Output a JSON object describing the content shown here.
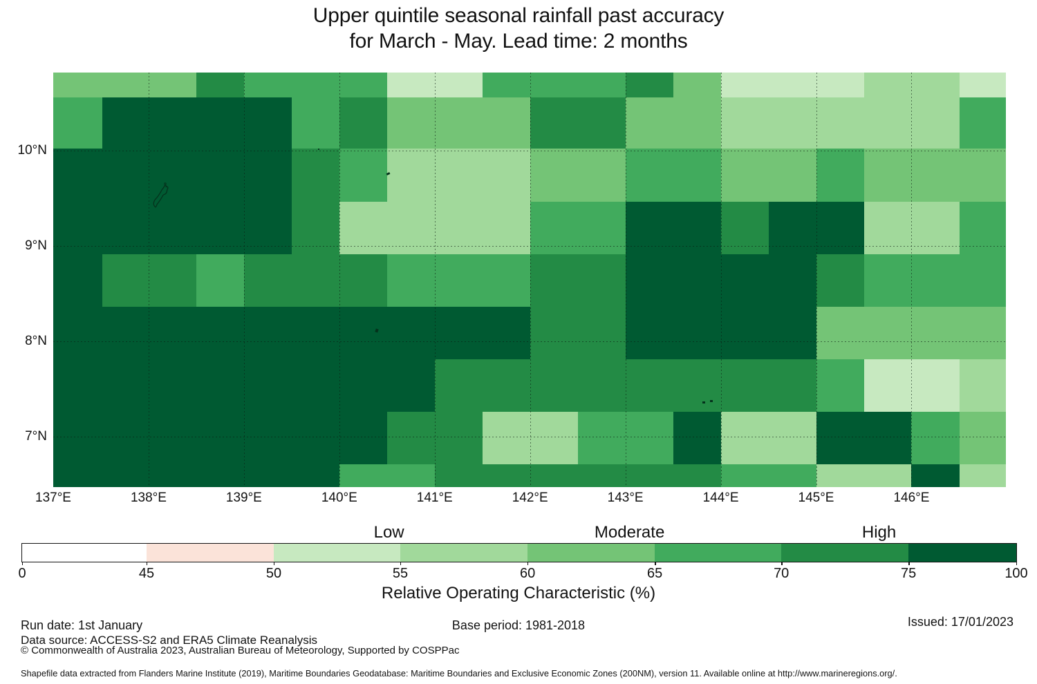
{
  "title": {
    "line1": "Upper quintile seasonal rainfall past accuracy",
    "line2": "for March - May. Lead time: 2 months"
  },
  "chart_data": {
    "type": "heatmap",
    "title": "Upper quintile seasonal rainfall past accuracy for March - May. Lead time: 2 months",
    "x_axis": {
      "ticks": [
        "137°E",
        "138°E",
        "139°E",
        "140°E",
        "141°E",
        "142°E",
        "143°E",
        "144°E",
        "145°E",
        "146°E"
      ],
      "tick_lons": [
        137,
        138,
        139,
        140,
        141,
        142,
        143,
        144,
        145,
        146
      ]
    },
    "y_axis": {
      "ticks": [
        "10°N",
        "9°N",
        "8°N",
        "7°N"
      ],
      "tick_lats": [
        10,
        9,
        8,
        7
      ]
    },
    "lon_range": [
      137.0,
      146.99
    ],
    "lat_range": [
      6.469,
      10.819
    ],
    "grid": "on (dashed, at whole degrees)",
    "col_bounds_lon": [
      137.0,
      137.515,
      138.0,
      138.501,
      139.0,
      139.501,
      140.0,
      140.502,
      141.0,
      141.503,
      142.0,
      142.503,
      143.0,
      143.503,
      144.0,
      144.504,
      145.0,
      145.504,
      146.0,
      146.504,
      146.99
    ],
    "row_bounds_lat": [
      10.819,
      10.558,
      10.021,
      9.463,
      8.912,
      8.361,
      7.81,
      7.259,
      6.708,
      6.469
    ],
    "grid_rows": [
      "33354441144453111221",
      "46666453335533222224",
      "66666542223344334333",
      "66666522224466566224",
      "65545554445566665444",
      "66666666665566663333",
      "66666666555555554112",
      "66666665522446226643",
      "66666644555555442262"
    ],
    "palette": {
      "w": "#ffffff",
      "p": "#fbe3d9",
      "1": "#c7e9c0",
      "2": "#a1d99b",
      "3": "#74c476",
      "4": "#41ab5d",
      "5": "#238b45",
      "6": "#005a32"
    },
    "class_roc_ranges_pct": {
      "w": "0-45",
      "p": "45-50",
      "1": "50-55",
      "2": "55-60",
      "3": "60-65",
      "4": "65-70",
      "5": "70-75",
      "6": "75-100"
    }
  },
  "colorbar": {
    "axis_title": "Relative Operating Characteristic (%)",
    "segment_keys": [
      "w",
      "p",
      "1",
      "2",
      "3",
      "4",
      "5",
      "6"
    ],
    "segment_widths_pct": [
      12.52,
      12.79,
      12.73,
      12.79,
      12.8,
      12.73,
      12.79,
      10.85
    ],
    "ticks": [
      "0",
      "45",
      "50",
      "55",
      "60",
      "65",
      "70",
      "75",
      "100"
    ],
    "tick_fractions_pct": [
      0,
      12.52,
      25.31,
      38.04,
      50.84,
      63.64,
      76.37,
      89.16,
      100
    ],
    "category_labels": [
      {
        "text": "Low",
        "pct": 36.9
      },
      {
        "text": "Moderate",
        "pct": 61.1
      },
      {
        "text": "High",
        "pct": 86.2
      }
    ]
  },
  "footer": {
    "run_date": "Run date: 1st January",
    "base_period": "Base period: 1981-2018",
    "issued": "Issued: 17/01/2023",
    "data_source": "Data source: ACCESS-S2 and ERA5 Climate Reanalysis",
    "copyright": "© Commonwealth of Australia 2023, Australian Bureau of Meteorology, Supported by COSPPac",
    "shapefile_note": "Shapefile data extracted from Flanders Marine Institute (2019), Maritime Boundaries Geodatabase: Maritime Boundaries and Exclusive Economic Zones (200NM), version 11. Available online at http://www.marineregions.org/."
  }
}
